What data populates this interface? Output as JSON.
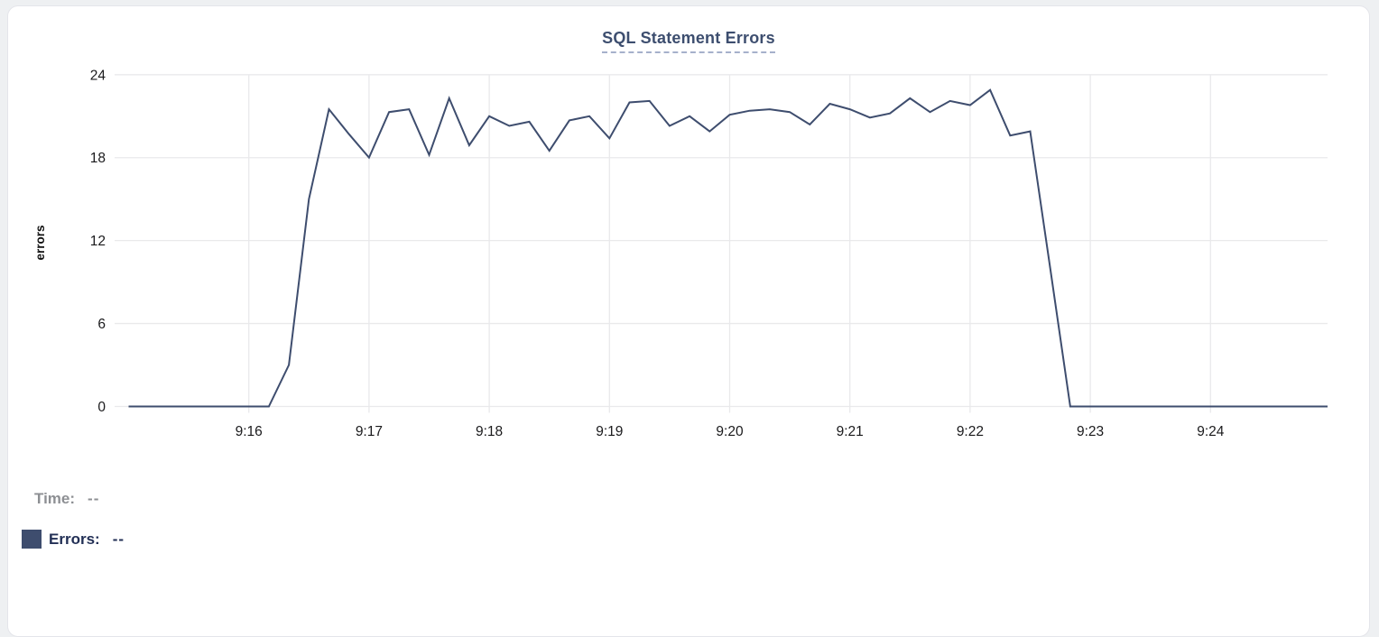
{
  "card": {
    "title": "SQL Statement Errors"
  },
  "legend": {
    "time_label": "Time:",
    "time_value": "--",
    "errors_label": "Errors:",
    "errors_value": "--",
    "swatch_color": "#3e4d6e"
  },
  "colors": {
    "line": "#3e4d6e",
    "grid": "#e9e9eb",
    "tick_text": "#1a1a1c",
    "axis_label_text": "#111111",
    "title": "#3d4e6f",
    "title_underline": "#a6b1cb"
  },
  "chart_data": {
    "type": "line",
    "title": "SQL Statement Errors",
    "xlabel": "",
    "ylabel": "errors",
    "series_name": "Errors",
    "ylim": [
      0,
      24
    ],
    "y_ticks": [
      0,
      6,
      12,
      18,
      24
    ],
    "x_tick_labels": [
      "9:16",
      "9:17",
      "9:18",
      "9:19",
      "9:20",
      "9:21",
      "9:22",
      "9:23",
      "9:24"
    ],
    "grid": true,
    "legend_position": "bottom-left",
    "sample_interval_seconds": 10,
    "x": [
      "9:15:00",
      "9:15:10",
      "9:15:20",
      "9:15:30",
      "9:15:40",
      "9:15:50",
      "9:16:00",
      "9:16:10",
      "9:16:20",
      "9:16:30",
      "9:16:40",
      "9:16:50",
      "9:17:00",
      "9:17:10",
      "9:17:20",
      "9:17:30",
      "9:17:40",
      "9:17:50",
      "9:18:00",
      "9:18:10",
      "9:18:20",
      "9:18:30",
      "9:18:40",
      "9:18:50",
      "9:19:00",
      "9:19:10",
      "9:19:20",
      "9:19:30",
      "9:19:40",
      "9:19:50",
      "9:20:00",
      "9:20:10",
      "9:20:20",
      "9:20:30",
      "9:20:40",
      "9:20:50",
      "9:21:00",
      "9:21:10",
      "9:21:20",
      "9:21:30",
      "9:21:40",
      "9:21:50",
      "9:22:00",
      "9:22:10",
      "9:22:20",
      "9:22:30",
      "9:22:40",
      "9:22:50",
      "9:23:00",
      "9:23:10",
      "9:23:20",
      "9:23:30",
      "9:23:40",
      "9:23:50",
      "9:24:00",
      "9:24:10",
      "9:24:20",
      "9:24:30",
      "9:24:40",
      "9:24:50",
      "9:25:00"
    ],
    "values": [
      0,
      0,
      0,
      0,
      0,
      0,
      0,
      0,
      3,
      15,
      21.5,
      19.7,
      18,
      21.3,
      21.5,
      18.2,
      22.3,
      18.9,
      21,
      20.3,
      20.6,
      18.5,
      20.7,
      21,
      19.4,
      22,
      22.1,
      20.3,
      21,
      19.9,
      21.1,
      21.4,
      21.5,
      21.3,
      20.4,
      21.9,
      21.5,
      20.9,
      21.2,
      22.3,
      21.3,
      22.1,
      21.8,
      22.9,
      19.6,
      19.9,
      10,
      0,
      0,
      0,
      0,
      0,
      0,
      0,
      0,
      0,
      0,
      0,
      0,
      0,
      0
    ]
  }
}
